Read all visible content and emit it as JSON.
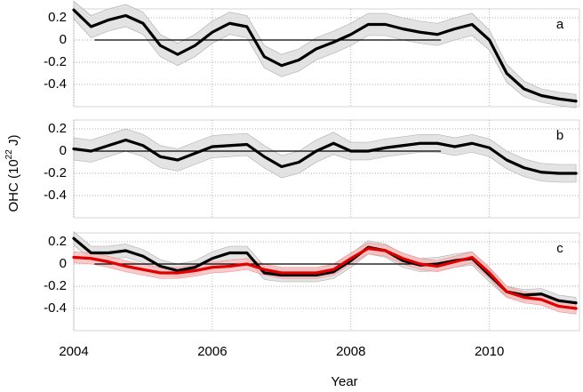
{
  "chart_data": [
    {
      "type": "line",
      "annotation": "a",
      "x": [
        2004,
        2004.25,
        2004.5,
        2004.75,
        2005,
        2005.25,
        2005.5,
        2005.75,
        2006,
        2006.25,
        2006.5,
        2006.75,
        2007,
        2007.25,
        2007.5,
        2007.75,
        2008,
        2008.25,
        2008.5,
        2008.75,
        2009,
        2009.25,
        2009.5,
        2009.75,
        2010,
        2010.25,
        2010.5,
        2010.75,
        2011,
        2011.25
      ],
      "series": [
        {
          "color": "#000000",
          "band_color": "#d9d9d9",
          "values": [
            0.27,
            0.12,
            0.18,
            0.22,
            0.15,
            -0.05,
            -0.13,
            -0.05,
            0.07,
            0.15,
            0.12,
            -0.15,
            -0.23,
            -0.18,
            -0.08,
            -0.02,
            0.05,
            0.14,
            0.14,
            0.1,
            0.07,
            0.05,
            0.1,
            0.14,
            0.0,
            -0.3,
            -0.44,
            -0.5,
            -0.53,
            -0.55
          ],
          "error": [
            0.08,
            0.1,
            0.1,
            0.1,
            0.1,
            0.1,
            0.1,
            0.1,
            0.1,
            0.1,
            0.1,
            0.1,
            0.1,
            0.1,
            0.1,
            0.1,
            0.1,
            0.1,
            0.1,
            0.1,
            0.1,
            0.1,
            0.1,
            0.1,
            0.09,
            0.08,
            0.07,
            0.06,
            0.06,
            0.06
          ]
        }
      ],
      "reference_line": {
        "x": [
          2004.3,
          2009.3
        ],
        "value": 0
      },
      "xlim": [
        2004,
        2011.3
      ],
      "xticks": [
        2004,
        2006,
        2008,
        2010
      ],
      "ylim": [
        -0.6,
        0.28
      ],
      "yticks": [
        0.2,
        0,
        -0.2,
        -0.4
      ],
      "grid": true
    },
    {
      "type": "line",
      "annotation": "b",
      "ylabel": {
        "text": "OHC (10",
        "sup": "22",
        "tail": " J)"
      },
      "x": [
        2004,
        2004.25,
        2004.5,
        2004.75,
        2005,
        2005.25,
        2005.5,
        2005.75,
        2006,
        2006.25,
        2006.5,
        2006.75,
        2007,
        2007.25,
        2007.5,
        2007.75,
        2008,
        2008.25,
        2008.5,
        2008.75,
        2009,
        2009.25,
        2009.5,
        2009.75,
        2010,
        2010.25,
        2010.5,
        2010.75,
        2011,
        2011.25
      ],
      "series": [
        {
          "color": "#000000",
          "band_color": "#d9d9d9",
          "values": [
            0.02,
            0.0,
            0.05,
            0.1,
            0.05,
            -0.05,
            -0.08,
            -0.02,
            0.04,
            0.05,
            0.06,
            -0.05,
            -0.14,
            -0.1,
            0.0,
            0.07,
            0.0,
            0.0,
            0.03,
            0.05,
            0.07,
            0.07,
            0.04,
            0.07,
            0.03,
            -0.08,
            -0.15,
            -0.19,
            -0.2,
            -0.2
          ],
          "error": [
            0.1,
            0.1,
            0.1,
            0.1,
            0.1,
            0.1,
            0.1,
            0.1,
            0.1,
            0.1,
            0.1,
            0.1,
            0.1,
            0.1,
            0.1,
            0.1,
            0.08,
            0.08,
            0.08,
            0.08,
            0.08,
            0.08,
            0.08,
            0.08,
            0.08,
            0.08,
            0.08,
            0.08,
            0.08,
            0.08
          ]
        }
      ],
      "reference_line": {
        "x": [
          2004.3,
          2009.3
        ],
        "value": 0
      },
      "xlim": [
        2004,
        2011.3
      ],
      "xticks": [
        2004,
        2006,
        2008,
        2010
      ],
      "ylim": [
        -0.6,
        0.28
      ],
      "yticks": [
        0.2,
        0,
        -0.2,
        -0.4
      ],
      "grid": true
    },
    {
      "type": "line",
      "annotation": "c",
      "xlabel": "Year",
      "x": [
        2004,
        2004.25,
        2004.5,
        2004.75,
        2005,
        2005.25,
        2005.5,
        2005.75,
        2006,
        2006.25,
        2006.5,
        2006.75,
        2007,
        2007.25,
        2007.5,
        2007.75,
        2008,
        2008.25,
        2008.5,
        2008.75,
        2009,
        2009.25,
        2009.5,
        2009.75,
        2010,
        2010.25,
        2010.5,
        2010.75,
        2011,
        2011.25
      ],
      "series": [
        {
          "color": "#000000",
          "band_color": "#d9d9d9",
          "values": [
            0.23,
            0.1,
            0.1,
            0.12,
            0.07,
            -0.02,
            -0.06,
            -0.03,
            0.05,
            0.1,
            0.1,
            -0.08,
            -0.1,
            -0.1,
            -0.1,
            -0.07,
            0.03,
            0.15,
            0.12,
            0.03,
            -0.01,
            0.0,
            0.03,
            0.05,
            -0.1,
            -0.25,
            -0.28,
            -0.27,
            -0.33,
            -0.35
          ],
          "error": [
            0.06,
            0.06,
            0.06,
            0.06,
            0.06,
            0.06,
            0.06,
            0.06,
            0.06,
            0.06,
            0.06,
            0.06,
            0.06,
            0.06,
            0.06,
            0.06,
            0.06,
            0.06,
            0.06,
            0.06,
            0.06,
            0.06,
            0.06,
            0.06,
            0.06,
            0.05,
            0.05,
            0.05,
            0.05,
            0.05
          ]
        },
        {
          "color": "#e00000",
          "band_color": "#f7b8b8",
          "values": [
            0.06,
            0.05,
            0.02,
            -0.02,
            -0.05,
            -0.08,
            -0.08,
            -0.06,
            -0.03,
            -0.02,
            0.0,
            -0.05,
            -0.08,
            -0.08,
            -0.08,
            -0.05,
            0.05,
            0.14,
            0.12,
            0.05,
            0.0,
            -0.02,
            0.02,
            0.06,
            -0.08,
            -0.25,
            -0.3,
            -0.32,
            -0.38,
            -0.4
          ],
          "error": [
            0.05,
            0.05,
            0.05,
            0.05,
            0.05,
            0.05,
            0.05,
            0.05,
            0.05,
            0.05,
            0.05,
            0.05,
            0.05,
            0.05,
            0.05,
            0.05,
            0.05,
            0.05,
            0.05,
            0.05,
            0.05,
            0.05,
            0.05,
            0.05,
            0.05,
            0.05,
            0.05,
            0.05,
            0.05,
            0.05
          ]
        }
      ],
      "reference_line": {
        "x": [
          2004.3,
          2009.3
        ],
        "value": 0
      },
      "xlim": [
        2004,
        2011.3
      ],
      "xticks": [
        2004,
        2006,
        2008,
        2010
      ],
      "ylim": [
        -0.6,
        0.28
      ],
      "yticks": [
        0.2,
        0,
        -0.2,
        -0.4
      ],
      "grid": true
    }
  ]
}
